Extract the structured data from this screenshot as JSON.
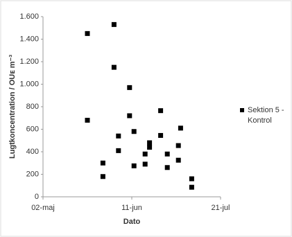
{
  "chart_data": {
    "type": "scatter",
    "x_label": "Dato",
    "y_label": "Lugtkoncentration / OUᴇ m⁻³",
    "series": [
      {
        "name": "Sektion 5 - Kontrol",
        "color": "#000000",
        "x": [
          "22-maj",
          "22-maj",
          "03-jun",
          "03-jun",
          "29-maj",
          "29-maj",
          "05-jun",
          "05-jun",
          "10-jun",
          "10-jun",
          "12-jun",
          "12-jun",
          "17-jun",
          "17-jun",
          "19-jun",
          "19-jun",
          "24-jun",
          "24-jun",
          "27-jun",
          "27-jun",
          "02-jul",
          "02-jul",
          "03-jul",
          "08-jul",
          "08-jul"
        ],
        "values": [
          1450,
          680,
          1530,
          1150,
          300,
          180,
          540,
          410,
          970,
          720,
          580,
          275,
          380,
          290,
          480,
          440,
          765,
          545,
          380,
          260,
          455,
          325,
          610,
          160,
          85
        ]
      }
    ],
    "xlim": [
      "02-maj",
      "21-jul"
    ],
    "xticks": [
      "02-maj",
      "11-jun",
      "21-jul"
    ],
    "ylim": [
      0,
      1600
    ],
    "yticks": [
      0,
      200,
      400,
      600,
      800,
      {
        "value": 1000,
        "label": "1.000"
      },
      {
        "value": 1200,
        "label": "1.200"
      },
      {
        "value": 1400,
        "label": "1.400"
      },
      {
        "value": 1600,
        "label": "1.600"
      }
    ],
    "legend": "right"
  }
}
